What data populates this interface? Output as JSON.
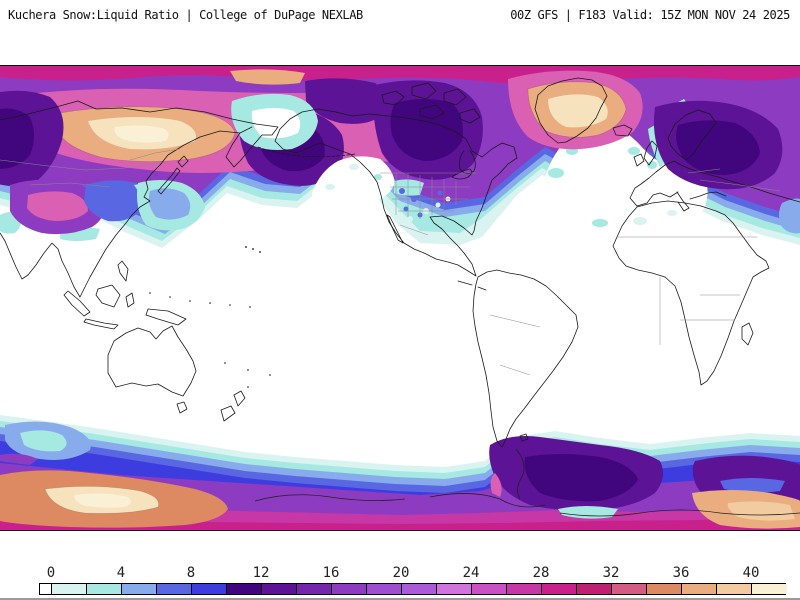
{
  "header": {
    "left": "Kuchera Snow:Liquid Ratio | College of DuPage NEXLAB",
    "right": "00Z GFS | F183 Valid: 15Z MON NOV 24 2025"
  },
  "chart_data": {
    "type": "heatmap",
    "title": "Kuchera Snow:Liquid Ratio",
    "provider": "College of DuPage NEXLAB",
    "model_run": "00Z GFS",
    "forecast_hour": "F183",
    "valid_time": "15Z MON NOV 24 2025",
    "units": "ratio",
    "scale_range": [
      0,
      40
    ],
    "scale_step": 2,
    "tick_step": 4
  },
  "colorbar": {
    "ticks": [
      "0",
      "4",
      "8",
      "12",
      "16",
      "20",
      "24",
      "28",
      "32",
      "36",
      "40"
    ],
    "cells": [
      {
        "from": null,
        "to": 0,
        "color": "#ffffff"
      },
      {
        "from": 0,
        "to": 2,
        "color": "#d9f3f1"
      },
      {
        "from": 2,
        "to": 4,
        "color": "#a6e8e2"
      },
      {
        "from": 4,
        "to": 6,
        "color": "#88aceb"
      },
      {
        "from": 6,
        "to": 8,
        "color": "#5a67e3"
      },
      {
        "from": 8,
        "to": 10,
        "color": "#3d3cdf"
      },
      {
        "from": 10,
        "to": 12,
        "color": "#41067e"
      },
      {
        "from": 12,
        "to": 14,
        "color": "#5c1396"
      },
      {
        "from": 14,
        "to": 16,
        "color": "#7527ab"
      },
      {
        "from": 16,
        "to": 18,
        "color": "#8d3cc1"
      },
      {
        "from": 18,
        "to": 20,
        "color": "#9e4fd0"
      },
      {
        "from": 20,
        "to": 22,
        "color": "#ac5bd8"
      },
      {
        "from": 22,
        "to": 24,
        "color": "#d174de"
      },
      {
        "from": 24,
        "to": 26,
        "color": "#c950c5"
      },
      {
        "from": 26,
        "to": 28,
        "color": "#c737a6"
      },
      {
        "from": 28,
        "to": 30,
        "color": "#c9218c"
      },
      {
        "from": 30,
        "to": 32,
        "color": "#bf2072"
      },
      {
        "from": 32,
        "to": 34,
        "color": "#d25c84"
      },
      {
        "from": 34,
        "to": 36,
        "color": "#dd8a62"
      },
      {
        "from": 36,
        "to": 38,
        "color": "#e9ad80"
      },
      {
        "from": 38,
        "to": 40,
        "color": "#f2cba0"
      },
      {
        "from": 40,
        "to": null,
        "color": "#faf0d6"
      }
    ]
  },
  "palette": {
    "white": "#ffffff",
    "cyan_pale": "#d9f3f1",
    "cyan": "#a6e8e2",
    "blue_light": "#88aceb",
    "blue": "#5a67e3",
    "blue_deep": "#3d3cdf",
    "violet_darkest": "#41067e",
    "purple_dark": "#5c1396",
    "purple": "#7527ab",
    "purple_med": "#8d3cc1",
    "purple_lt": "#9e4fd0",
    "orchid": "#ac5bd8",
    "orchid_lt": "#d174de",
    "magenta_orchid": "#c950c5",
    "magenta": "#c737a6",
    "pink_deep": "#c9218c",
    "pink": "#d960b3",
    "rose": "#d25c84",
    "salmon": "#dd8a62",
    "salmon_lt": "#e9ad80",
    "peach": "#f2cba0",
    "cream": "#f6e2bd",
    "cream_pale": "#faf0d6",
    "coast": "#1a1a1a",
    "border_gray": "#8a8a8a"
  }
}
